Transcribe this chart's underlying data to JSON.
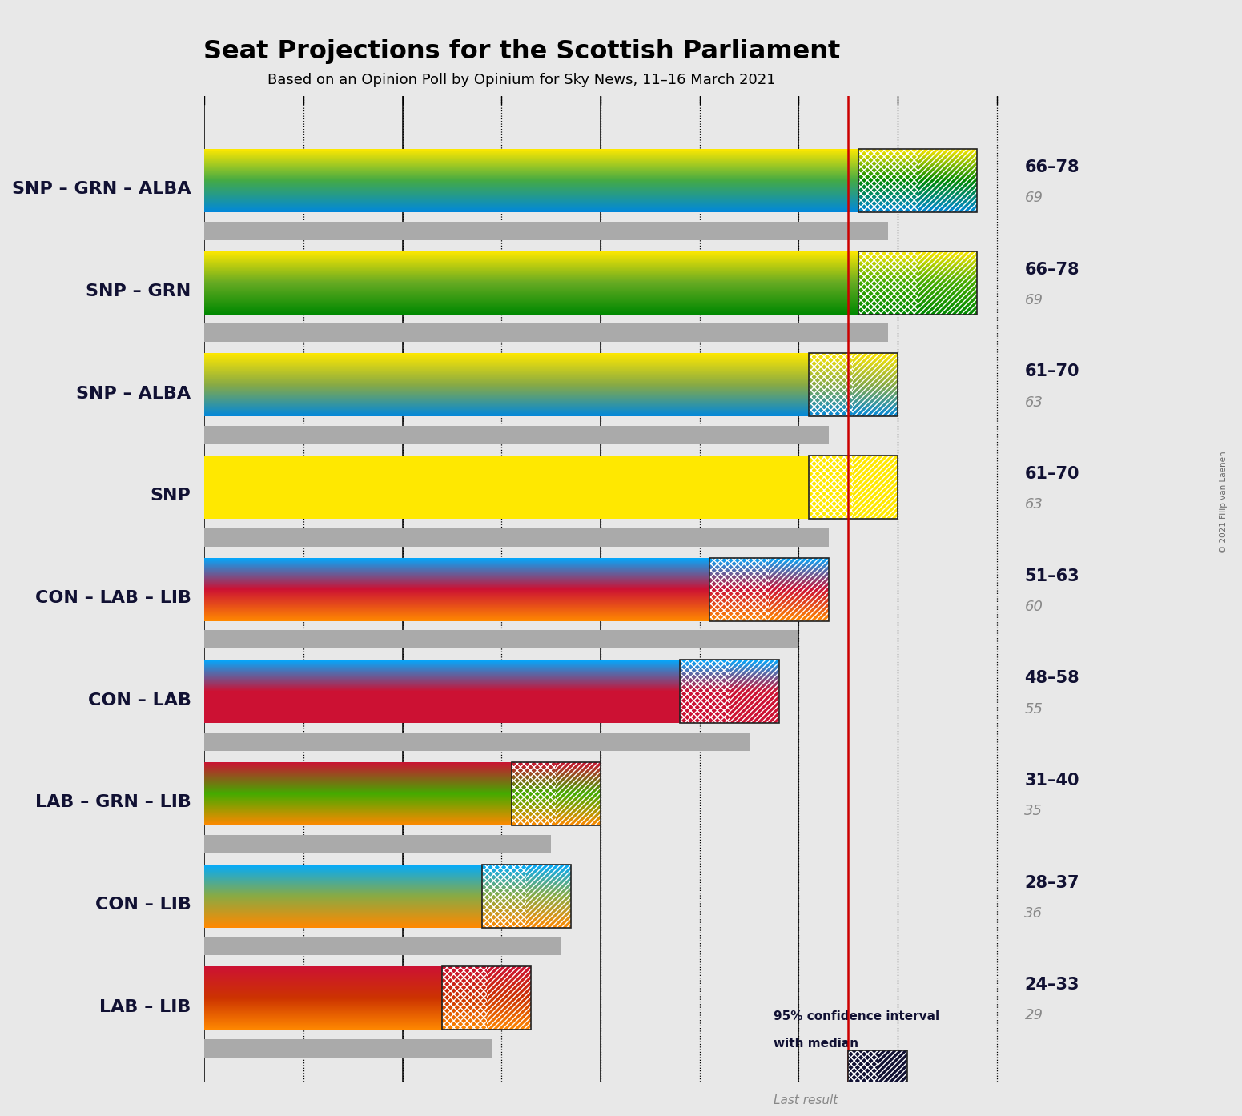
{
  "title": "Seat Projections for the Scottish Parliament",
  "subtitle": "Based on an Opinion Poll by Opinium for Sky News, 11–16 March 2021",
  "copyright": "© 2021 Filip van Laenen",
  "coalitions": [
    {
      "name": "SNP – GRN – ALBA",
      "underline": false,
      "low": 66,
      "high": 78,
      "median": 69,
      "last": 69,
      "colors_top": "#FFE800",
      "colors_mid": "#44AA44",
      "colors_bot": "#0087DC",
      "ci_top": "#FFE800",
      "ci_mid": "#008800",
      "ci_bot": "#0087DC"
    },
    {
      "name": "SNP – GRN",
      "underline": false,
      "low": 66,
      "high": 78,
      "median": 69,
      "last": 69,
      "colors_top": "#FFE800",
      "colors_mid": "#66AA22",
      "colors_bot": "#008800",
      "ci_top": "#FFE800",
      "ci_mid": "#44AA00",
      "ci_bot": "#008800"
    },
    {
      "name": "SNP – ALBA",
      "underline": false,
      "low": 61,
      "high": 70,
      "median": 63,
      "last": 63,
      "colors_top": "#FFE800",
      "colors_mid": "#88AA44",
      "colors_bot": "#0087DC",
      "ci_top": "#FFE800",
      "ci_mid": "#88AA44",
      "ci_bot": "#0087DC"
    },
    {
      "name": "SNP",
      "underline": true,
      "low": 61,
      "high": 70,
      "median": 63,
      "last": 63,
      "colors_top": "#FFE800",
      "colors_mid": "#FFE800",
      "colors_bot": "#FFE800",
      "ci_top": "#FFE800",
      "ci_mid": "#FFE800",
      "ci_bot": "#FFE800"
    },
    {
      "name": "CON – LAB – LIB",
      "underline": false,
      "low": 51,
      "high": 63,
      "median": 60,
      "last": 60,
      "colors_top": "#00AAFF",
      "colors_mid": "#CC1133",
      "colors_bot": "#FF8800",
      "ci_top": "#00AAFF",
      "ci_mid": "#CC1133",
      "ci_bot": "#FF8800"
    },
    {
      "name": "CON – LAB",
      "underline": false,
      "low": 48,
      "high": 58,
      "median": 55,
      "last": 55,
      "colors_top": "#00AAFF",
      "colors_mid": "#CC1133",
      "colors_bot": "#CC1133",
      "ci_top": "#00AAFF",
      "ci_mid": "#CC1133",
      "ci_bot": "#CC1133"
    },
    {
      "name": "LAB – GRN – LIB",
      "underline": false,
      "low": 31,
      "high": 40,
      "median": 35,
      "last": 35,
      "colors_top": "#CC1133",
      "colors_mid": "#44AA00",
      "colors_bot": "#FF8800",
      "ci_top": "#CC1133",
      "ci_mid": "#44AA00",
      "ci_bot": "#FF8800"
    },
    {
      "name": "CON – LIB",
      "underline": false,
      "low": 28,
      "high": 37,
      "median": 36,
      "last": 36,
      "colors_top": "#00AAFF",
      "colors_mid": "#88AA44",
      "colors_bot": "#FF8800",
      "ci_top": "#00AAFF",
      "ci_mid": "#88AA44",
      "ci_bot": "#FF8800"
    },
    {
      "name": "LAB – LIB",
      "underline": false,
      "low": 24,
      "high": 33,
      "median": 29,
      "last": 29,
      "colors_top": "#CC1133",
      "colors_mid": "#CC3300",
      "colors_bot": "#FF8800",
      "ci_top": "#CC1133",
      "ci_mid": "#CC3300",
      "ci_bot": "#FF8800"
    }
  ],
  "majority_line": 65,
  "xmax": 82,
  "background_color": "#E8E8E8",
  "bar_height": 0.62,
  "last_bar_height": 0.18,
  "grid_vals": [
    10,
    20,
    30,
    40,
    50,
    60,
    70,
    80
  ]
}
